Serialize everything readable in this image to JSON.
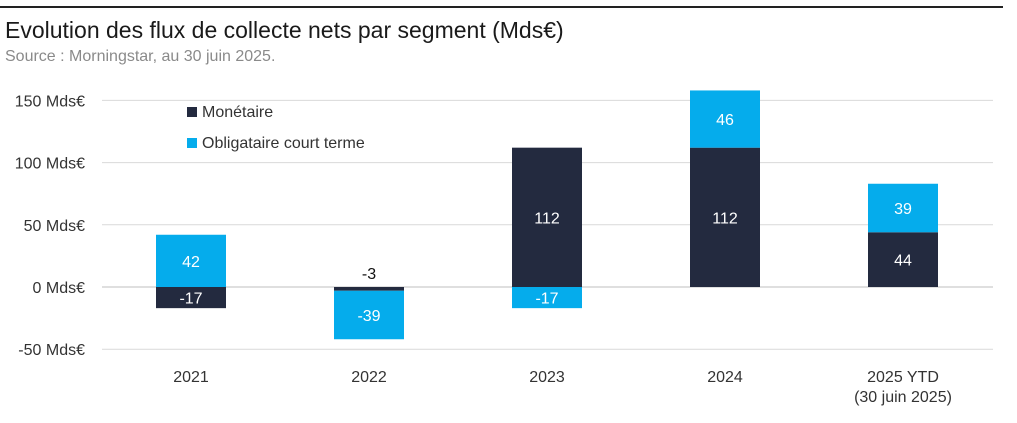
{
  "header": {
    "title": "Evolution des flux de collecte nets par segment (Mds€)",
    "source": "Source : Morningstar, au 30 juin 2025."
  },
  "colors": {
    "monetaire": "#232a3f",
    "obligataire": "#05acec",
    "grid": "#d9d9d9",
    "axis": "#bfbfbf"
  },
  "chart_data": {
    "type": "bar",
    "stacked": true,
    "title": "Evolution des flux de collecte nets par segment (Mds€)",
    "categories": [
      "2021",
      "2022",
      "2023",
      "2024",
      "2025 YTD\n(30 juin 2025)"
    ],
    "series": [
      {
        "name": "Monétaire",
        "color": "#232a3f",
        "values": [
          -17,
          -3,
          112,
          112,
          44
        ]
      },
      {
        "name": "Obligataire court terme",
        "color": "#05acec",
        "values": [
          42,
          -39,
          -17,
          46,
          39
        ]
      }
    ],
    "ylim": [
      -50,
      150
    ],
    "yticks": [
      -50,
      0,
      50,
      100,
      150
    ],
    "ytick_labels": [
      "-50 Mds€",
      "0 Mds€",
      "50 Mds€",
      "100 Mds€",
      "150 Mds€"
    ],
    "grid": true,
    "legend": "top-left"
  }
}
